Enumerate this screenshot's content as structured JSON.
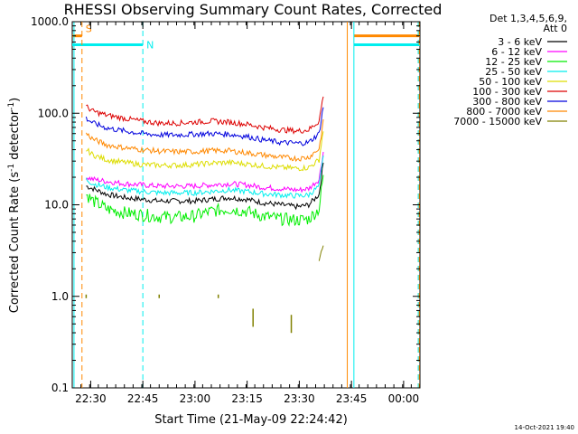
{
  "chart_data": {
    "type": "line",
    "title": "RHESSI Observing Summary Count Rates, Corrected",
    "xlabel": "Start Time (21-May-09 22:24:42)",
    "ylabel_main": "Corrected Count Rate (s",
    "ylabel_sup1": "-1",
    "ylabel_mid": " detector",
    "ylabel_sup2": "-1",
    "ylabel_end": ")",
    "yscale": "log",
    "ylim": [
      0.1,
      1000
    ],
    "xlim_minutes": [
      0,
      100
    ],
    "x_ticks": [
      {
        "label": "22:30",
        "minute": 5.3
      },
      {
        "label": "22:45",
        "minute": 20.3
      },
      {
        "label": "23:00",
        "minute": 35.3
      },
      {
        "label": "23:15",
        "minute": 50.3
      },
      {
        "label": "23:30",
        "minute": 65.3
      },
      {
        "label": "23:45",
        "minute": 80.3
      },
      {
        "label": "00:00",
        "minute": 95.3
      }
    ],
    "y_ticks": [
      {
        "label": "0.1",
        "value": 0.1
      },
      {
        "label": "1.0",
        "value": 1
      },
      {
        "label": "10.0",
        "value": 10
      },
      {
        "label": "100.0",
        "value": 100
      },
      {
        "label": "1000.0",
        "value": 1000
      }
    ],
    "legend_header": [
      "Det 1,3,4,5,6,9,",
      "Att 0"
    ],
    "x": [
      2.8,
      4,
      6,
      10,
      15,
      20,
      25,
      30,
      35,
      40,
      45,
      50,
      55,
      60,
      65,
      68,
      71,
      72.5
    ],
    "series": [
      {
        "name": "3 - 6 keV",
        "color": "#000000",
        "values": [
          null,
          16,
          15,
          13,
          12,
          11.5,
          11,
          11,
          11,
          11.5,
          12,
          11.5,
          10.5,
          10,
          9.5,
          10,
          13,
          35
        ]
      },
      {
        "name": "6 - 12 keV",
        "color": "#ff00ff",
        "values": [
          null,
          20,
          19,
          18,
          17,
          16.5,
          16,
          16,
          16,
          16.5,
          17,
          16.5,
          15.5,
          15,
          14.5,
          15,
          19,
          45
        ]
      },
      {
        "name": "12 - 25 keV",
        "color": "#00ee00",
        "values": [
          null,
          13,
          11,
          9,
          8.2,
          7.8,
          7.4,
          7.3,
          7.5,
          8.5,
          9,
          8.5,
          7.5,
          7,
          6.8,
          7,
          9,
          26
        ]
      },
      {
        "name": "25 - 50 keV",
        "color": "#00eeee",
        "values": [
          null,
          19,
          17,
          15.5,
          14.5,
          14,
          13.5,
          13.5,
          13.5,
          14,
          14.5,
          14,
          13.2,
          12.8,
          12.5,
          12.8,
          16,
          40
        ]
      },
      {
        "name": "50 - 100 keV",
        "color": "#dddd00",
        "values": [
          null,
          40,
          35,
          31,
          29,
          27.5,
          27,
          27,
          27.5,
          28.5,
          29,
          28,
          26.5,
          25.5,
          25,
          25.5,
          31,
          80
        ]
      },
      {
        "name": "100 - 300 keV",
        "color": "#dd0000",
        "values": [
          null,
          118,
          105,
          95,
          88,
          82,
          78,
          78,
          80,
          82,
          80,
          76,
          70,
          66,
          64,
          66,
          82,
          185
        ]
      },
      {
        "name": "300 - 800 keV",
        "color": "#0000dd",
        "values": [
          null,
          88,
          78,
          69,
          64,
          60,
          58,
          58,
          59,
          60,
          59,
          56,
          51,
          48,
          47,
          48,
          60,
          140
        ]
      },
      {
        "name": "800 - 7000 keV",
        "color": "#ff8800",
        "values": [
          null,
          60,
          52,
          45,
          42,
          40,
          38.5,
          38,
          38,
          39,
          39,
          37,
          35,
          33,
          32,
          33,
          41,
          95
        ]
      },
      {
        "name": "7000 - 15000 keV",
        "color": "#808000",
        "values": [
          4,
          null,
          null,
          null,
          null,
          null,
          null,
          null,
          null,
          null,
          null,
          null,
          null,
          null,
          null,
          null,
          2.5,
          4
        ]
      }
    ],
    "flags": [
      {
        "label": "S",
        "color": "#ff8800",
        "level": 700,
        "x_start": 0,
        "x_end": 2.8,
        "style": "solid"
      },
      {
        "label": "N",
        "color": "#00eeee",
        "level": 560,
        "x_start": 0,
        "x_end": 20.3,
        "style": "solid"
      },
      {
        "label": "",
        "color": "#ff8800",
        "level": 700,
        "x_start": 81,
        "x_end": 100,
        "style": "solid"
      },
      {
        "label": "",
        "color": "#00eeee",
        "level": 560,
        "x_start": 81,
        "x_end": 100,
        "style": "solid"
      }
    ],
    "vlines": [
      {
        "minute": 0.5,
        "color": "#00eeee",
        "style": "solid"
      },
      {
        "minute": 2.8,
        "color": "#ff8800",
        "style": "dashed"
      },
      {
        "minute": 20.3,
        "color": "#00eeee",
        "style": "dashed"
      },
      {
        "minute": 79.1,
        "color": "#ff8800",
        "style": "solid"
      },
      {
        "minute": 81,
        "color": "#00eeee",
        "style": "solid"
      },
      {
        "minute": 99.5,
        "color": "#00eeee",
        "style": "dashed"
      },
      {
        "minute": 99.8,
        "color": "#ff8800",
        "style": "dashed"
      }
    ],
    "sparse_points_7000_15000": [
      {
        "minute": 4,
        "value": 1.0
      },
      {
        "minute": 25,
        "value": 1.0
      },
      {
        "minute": 42,
        "value": 1.0
      },
      {
        "minute": 52,
        "value": 0.7
      },
      {
        "minute": 63,
        "value": 0.6
      }
    ],
    "timestamp": "14-Oct-2021 19:40"
  }
}
